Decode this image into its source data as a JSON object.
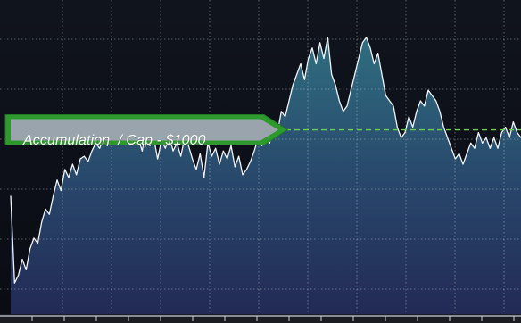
{
  "chart_data": {
    "type": "area",
    "title": "",
    "xlabel": "",
    "ylabel": "",
    "grid": true,
    "ylim": [
      0,
      100
    ],
    "reference_line": {
      "value": 63,
      "style": "dashed",
      "color": "#6ccf4a"
    },
    "annotation": {
      "text": "Accumulation  / Cap - $1000",
      "color": "#2e9a2e"
    },
    "series": [
      {
        "values": [
          38,
          5,
          8,
          14,
          10,
          18,
          22,
          20,
          28,
          33,
          31,
          38,
          44,
          40,
          48,
          45,
          50,
          46,
          52,
          53,
          51,
          55,
          58,
          56,
          60,
          57,
          63,
          60,
          64,
          61,
          66,
          62,
          58,
          60,
          55,
          63,
          57,
          60,
          52,
          59,
          56,
          61,
          55,
          58,
          53,
          60,
          57,
          52,
          48,
          54,
          45,
          58,
          53,
          56,
          50,
          55,
          52,
          57,
          49,
          53,
          46,
          48,
          51,
          55,
          60,
          57,
          62,
          58,
          66,
          62,
          70,
          68,
          74,
          80,
          84,
          88,
          82,
          90,
          94,
          88,
          96,
          90,
          98,
          84,
          80,
          74,
          70,
          72,
          78,
          84,
          90,
          96,
          98,
          94,
          88,
          92,
          84,
          76,
          74,
          72,
          64,
          60,
          62,
          68,
          64,
          70,
          74,
          72,
          78,
          76,
          74,
          70,
          64,
          60,
          56,
          52,
          54,
          50,
          54,
          58,
          56,
          62,
          58,
          60,
          56,
          60,
          56,
          62,
          64,
          60,
          66,
          62,
          60
        ]
      }
    ],
    "colors": {
      "line": "#f2f4f8",
      "grid": "#c9ced8",
      "fill_top": "#2f6e80",
      "fill_bottom": "#222a55",
      "background": "#0b0d14"
    }
  }
}
